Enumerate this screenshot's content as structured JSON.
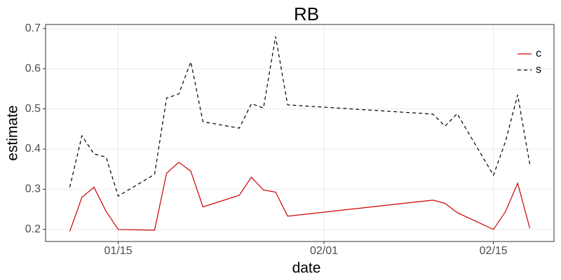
{
  "chart_data": {
    "type": "line",
    "title": "RB",
    "x_label": "date",
    "y_label": "estimate",
    "x": [
      "01/11",
      "01/12",
      "01/13",
      "01/14",
      "01/15",
      "01/18",
      "01/19",
      "01/20",
      "01/21",
      "01/22",
      "01/25",
      "01/26",
      "01/27",
      "01/28",
      "01/29",
      "02/10",
      "02/11",
      "02/12",
      "02/15",
      "02/16",
      "02/17",
      "02/18"
    ],
    "series": [
      {
        "name": "c",
        "color": "#cc0000",
        "dash": "solid",
        "values": [
          0.195,
          0.28,
          0.305,
          0.245,
          0.2,
          0.198,
          0.34,
          0.367,
          0.345,
          0.256,
          0.285,
          0.33,
          0.298,
          0.293,
          0.233,
          0.273,
          0.265,
          0.242,
          0.2,
          0.245,
          0.315,
          0.203
        ]
      },
      {
        "name": "s",
        "color": "#000000",
        "dash": "dashed",
        "values": [
          0.305,
          0.433,
          0.388,
          0.38,
          0.283,
          0.337,
          0.527,
          0.537,
          0.617,
          0.468,
          0.452,
          0.513,
          0.502,
          0.68,
          0.51,
          0.487,
          0.457,
          0.488,
          0.335,
          0.42,
          0.535,
          0.362
        ]
      }
    ],
    "xlim": [
      "01/09",
      "02/20"
    ],
    "xticks": [
      "01/15",
      "02/01",
      "02/15"
    ],
    "ylim": [
      0.17,
      0.71
    ],
    "yticks": [
      0.2,
      0.3,
      0.4,
      0.5,
      0.6,
      0.7
    ],
    "grid": true,
    "legend": "top-right"
  }
}
